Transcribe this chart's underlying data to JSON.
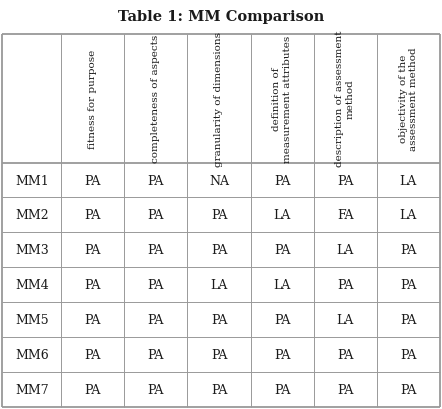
{
  "title": "Table 1: MM Comparison",
  "col_headers": [
    "fitness for purpose",
    "completeness of aspects",
    "granularity of dimensions",
    "definition of\nmeasurement attributes",
    "description of assessment\nmethod",
    "objectivity of the\nassessment method"
  ],
  "row_headers": [
    "MM1",
    "MM2",
    "MM3",
    "MM4",
    "MM5",
    "MM6",
    "MM7"
  ],
  "data": [
    [
      "PA",
      "PA",
      "NA",
      "PA",
      "PA",
      "LA"
    ],
    [
      "PA",
      "PA",
      "PA",
      "LA",
      "FA",
      "LA"
    ],
    [
      "PA",
      "PA",
      "PA",
      "PA",
      "LA",
      "PA"
    ],
    [
      "PA",
      "PA",
      "LA",
      "LA",
      "PA",
      "PA"
    ],
    [
      "PA",
      "PA",
      "PA",
      "PA",
      "LA",
      "PA"
    ],
    [
      "PA",
      "PA",
      "PA",
      "PA",
      "PA",
      "PA"
    ],
    [
      "PA",
      "PA",
      "PA",
      "PA",
      "PA",
      "PA"
    ]
  ],
  "bg_color": "#ffffff",
  "text_color": "#1a1a1a",
  "line_color": "#999999",
  "title_fontsize": 10.5,
  "header_fontsize": 7.5,
  "cell_fontsize": 9,
  "row_header_fontsize": 9
}
